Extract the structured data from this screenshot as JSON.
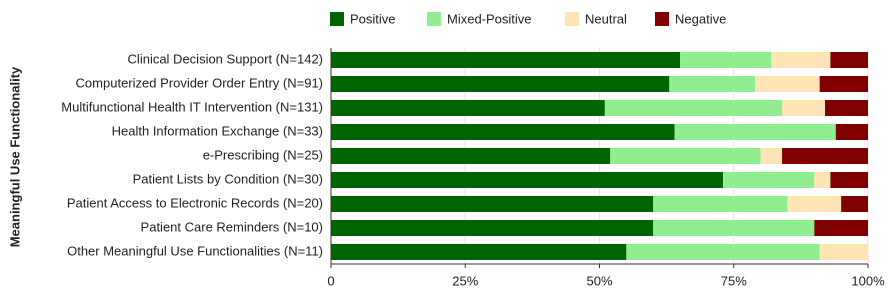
{
  "chart_data": {
    "type": "bar",
    "orientation": "horizontal",
    "stacked": true,
    "y_label": "Meaningful Use Functionality",
    "categories": [
      "Clinical Decision Support (N=142)",
      "Computerized Provider Order Entry (N=91)",
      "Multifunctional Health IT Intervention (N=131)",
      "Health Information Exchange (N=33)",
      "e-Prescribing (N=25)",
      "Patient Lists by Condition (N=30)",
      "Patient Access to Electronic Records (N=20)",
      "Patient Care Reminders (N=10)",
      "Other Meaningful Use Functionalities (N=11)"
    ],
    "series": [
      {
        "name": "Positive",
        "color": "#006400",
        "values": [
          65,
          63,
          51,
          64,
          52,
          73,
          60,
          60,
          55
        ]
      },
      {
        "name": "Mixed-Positive",
        "color": "#90ee90",
        "values": [
          17,
          16,
          33,
          30,
          28,
          17,
          25,
          30,
          36
        ]
      },
      {
        "name": "Neutral",
        "color": "#ffe4b5",
        "values": [
          11,
          12,
          8,
          0,
          4,
          3,
          10,
          0,
          9
        ]
      },
      {
        "name": "Negative",
        "color": "#800000",
        "values": [
          7,
          9,
          8,
          6,
          16,
          7,
          5,
          10,
          0
        ]
      }
    ],
    "xlim": [
      0,
      100
    ],
    "xticks": [
      {
        "value": 0,
        "label": "0"
      },
      {
        "value": 25,
        "label": "25%"
      },
      {
        "value": 50,
        "label": "50%"
      },
      {
        "value": 75,
        "label": "75%"
      },
      {
        "value": 100,
        "label": "100%"
      }
    ],
    "grid": true,
    "legend": "top"
  }
}
